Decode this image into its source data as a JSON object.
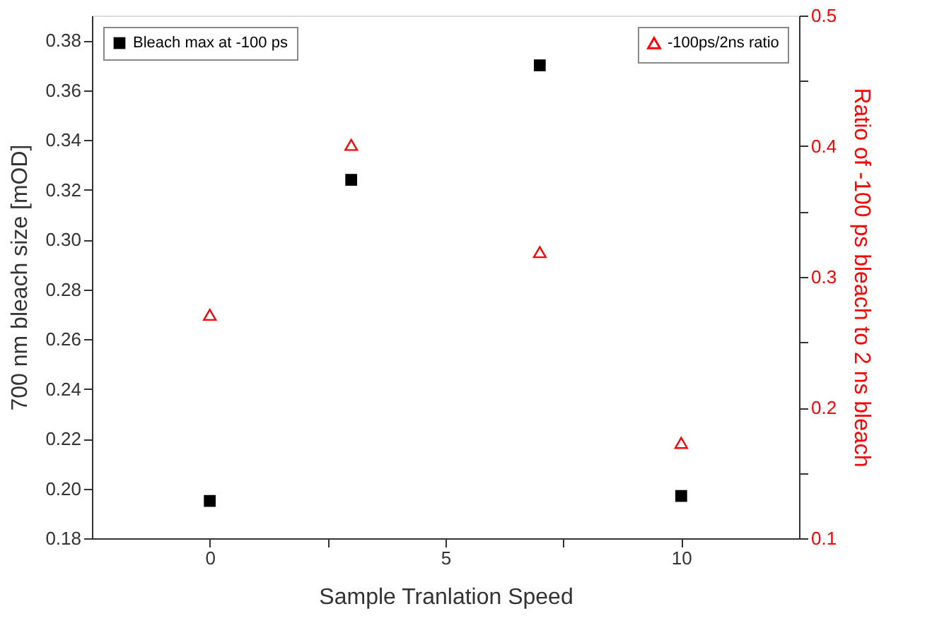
{
  "chart_data": {
    "type": "scatter",
    "xlabel": "Sample Tranlation Speed",
    "ylabel": "700 nm bleach size [mOD]",
    "y2label": "Ratio of -100 ps bleach to 2 ns bleach",
    "x": [
      0,
      3,
      7,
      10
    ],
    "series": [
      {
        "name": "Bleach max at -100 ps",
        "color": "#000000",
        "marker": "square",
        "values": [
          0.195,
          0.324,
          0.37,
          0.197
        ]
      },
      {
        "name": "-100ps/2ns ratio",
        "color": "#ff0000",
        "marker": "triangle",
        "axis": "y2",
        "values": [
          0.271,
          0.401,
          0.319,
          0.173
        ]
      }
    ],
    "xlim": [
      -2.5,
      12.5
    ],
    "xticks": [
      0,
      {
        "value": 2.5,
        "label": null
      },
      5,
      {
        "value": 7.5,
        "label": null
      },
      10
    ],
    "ylim": [
      0.18,
      0.39
    ],
    "yticks": [
      0.18,
      {
        "value": 0.2,
        "label": "0.20"
      },
      0.22,
      0.24,
      0.26,
      0.28,
      {
        "value": 0.3,
        "label": "0.30"
      },
      0.32,
      0.34,
      0.36,
      0.38
    ],
    "y2lim": [
      0.1,
      0.5
    ],
    "y2ticks": [
      0.1,
      {
        "value": 0.15,
        "label": null
      },
      0.2,
      {
        "value": 0.25,
        "label": null
      },
      0.3,
      {
        "value": 0.35,
        "label": null
      },
      0.4,
      {
        "value": 0.45,
        "label": null
      },
      0.5
    ],
    "grid": false,
    "legend": "top"
  }
}
